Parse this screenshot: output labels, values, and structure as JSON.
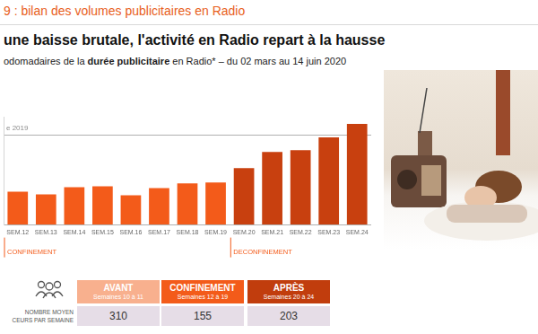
{
  "header": {
    "kicker": "9 : bilan des volumes publicitaires en Radio",
    "title": "une baisse brutale, l'activité en Radio repart à la hausse",
    "subtitle": [
      {
        "text": "odomadaires de la "
      },
      {
        "text": "durée publicitaire",
        "bold": true
      },
      {
        "text": " en Radio* – du 02 mars au 14 juin 2020"
      }
    ]
  },
  "chart_data": {
    "type": "bar",
    "categories": [
      "SEM.12",
      "SEM.13",
      "SEM.14",
      "SEM.15",
      "SEM.16",
      "SEM.17",
      "SEM.18",
      "SEM.19",
      "SEM.20",
      "SEM.21",
      "SEM.22",
      "SEM.23",
      "SEM.24"
    ],
    "values": [
      37,
      34,
      42,
      43,
      33,
      41,
      46,
      47,
      63,
      81,
      83,
      97,
      112
    ],
    "colors": [
      "#f35b1a",
      "#f35b1a",
      "#f35b1a",
      "#f35b1a",
      "#f35b1a",
      "#f35b1a",
      "#f35b1a",
      "#f35b1a",
      "#c8400f",
      "#c8400f",
      "#c8400f",
      "#c8400f",
      "#c8400f"
    ],
    "ylim": [
      0,
      120
    ],
    "yticks": [
      0,
      100
    ],
    "grid": true,
    "tick_labels": "x",
    "annotations": [
      {
        "text": "e 2019",
        "y": 100
      }
    ],
    "periods": [
      {
        "label": "CONFINEMENT",
        "start": "SEM.12"
      },
      {
        "label": "DECONFINEMENT",
        "start": "SEM.20"
      }
    ]
  },
  "table": {
    "row_label": [
      "NOMBRE MOYEN",
      "CEURS PAR SEMAINE"
    ],
    "columns": [
      {
        "title": "AVANT",
        "subtitle": "Semaines 10 à 11",
        "value": 310
      },
      {
        "title": "CONFINEMENT",
        "subtitle": "Semaines 12 à 19",
        "value": 155
      },
      {
        "title": "APRÈS",
        "subtitle": "Semaines 20 à 24",
        "value": 203
      }
    ]
  }
}
